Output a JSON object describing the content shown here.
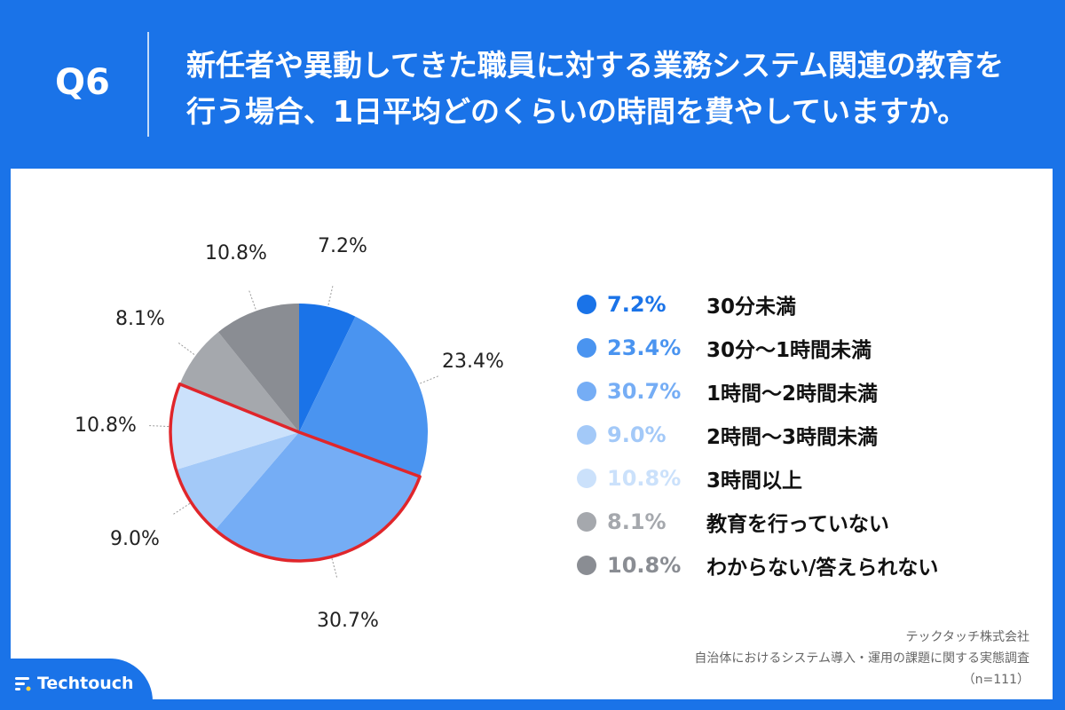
{
  "header": {
    "question_label": "Q6",
    "question_line1": "新任者や異動してきた職員に対する業務システム関連の教育を",
    "question_line2": "行う場合、1日平均どのくらいの時間を費やしていますか。"
  },
  "chart_data": {
    "type": "pie",
    "title": "",
    "start": "12 o'clock, clockwise",
    "slices": [
      {
        "label": "30分未満",
        "value": 7.2,
        "display": "7.2%",
        "color": "#1a73e8"
      },
      {
        "label": "30分〜1時間未満",
        "value": 23.4,
        "display": "23.4%",
        "color": "#4a94f0"
      },
      {
        "label": "1時間〜2時間未満",
        "value": 30.7,
        "display": "30.7%",
        "color": "#75adf5"
      },
      {
        "label": "2時間〜3時間未満",
        "value": 9.0,
        "display": "9.0%",
        "color": "#a3c9f8"
      },
      {
        "label": "3時間以上",
        "value": 10.8,
        "display": "10.8%",
        "color": "#cbe1fb"
      },
      {
        "label": "教育を行っていない",
        "value": 8.1,
        "display": "8.1%",
        "color": "#a5a8ad"
      },
      {
        "label": "わからない/答えられない",
        "value": 10.8,
        "display": "10.8%",
        "color": "#8a8d93"
      }
    ],
    "highlight": {
      "from_slice": 2,
      "to_slice": 4,
      "color": "#e0262b",
      "note": "highlighted group: 1時間以上"
    }
  },
  "source": {
    "company": "テックタッチ株式会社",
    "survey": "自治体におけるシステム導入・運用の課題に関する実態調査",
    "sample": "（n=111）"
  },
  "brand": {
    "name": "Techtouch"
  }
}
